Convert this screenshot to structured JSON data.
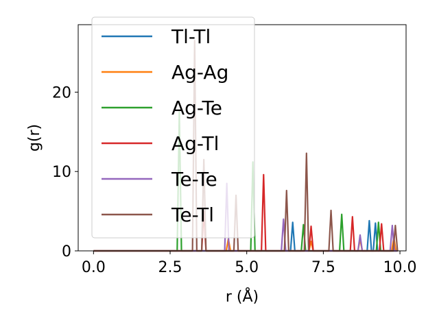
{
  "chart_data": {
    "type": "line",
    "title": "",
    "xlabel": "r (Å)",
    "ylabel": "g(r)",
    "xlim": [
      -0.5,
      10.2
    ],
    "ylim": [
      0,
      28.5
    ],
    "xticks": [
      0.0,
      2.5,
      5.0,
      7.5,
      10.0
    ],
    "xtick_labels": [
      "0.0",
      "2.5",
      "5.0",
      "7.5",
      "10.0"
    ],
    "yticks": [
      0,
      10,
      20
    ],
    "ytick_labels": [
      "0",
      "10",
      "20"
    ],
    "grid": false,
    "legend_position": "upper-left",
    "peak_half_width": 0.07,
    "series": [
      {
        "name": "Tl-Tl",
        "color": "#1f77b4",
        "peaks": [
          [
            6.5,
            3.6
          ],
          [
            9.0,
            3.8
          ],
          [
            9.2,
            3.5
          ]
        ]
      },
      {
        "name": "Ag-Ag",
        "color": "#ff7f0e",
        "peaks": [
          [
            4.4,
            1.5
          ],
          [
            7.1,
            1.2
          ],
          [
            8.7,
            1.5
          ],
          [
            9.8,
            1.7
          ]
        ]
      },
      {
        "name": "Ag-Te",
        "color": "#2ca02c",
        "peaks": [
          [
            2.8,
            17.5
          ],
          [
            5.2,
            11.2
          ],
          [
            6.85,
            3.3
          ],
          [
            8.1,
            4.6
          ],
          [
            9.3,
            3.6
          ]
        ]
      },
      {
        "name": "Ag-Tl",
        "color": "#d62728",
        "peaks": [
          [
            3.6,
            5.0
          ],
          [
            5.55,
            9.6
          ],
          [
            7.1,
            3.1
          ],
          [
            8.45,
            4.3
          ],
          [
            9.4,
            3.4
          ]
        ]
      },
      {
        "name": "Te-Te",
        "color": "#9467bd",
        "peaks": [
          [
            4.35,
            8.5
          ],
          [
            6.2,
            4.0
          ],
          [
            8.7,
            2.0
          ],
          [
            9.75,
            3.2
          ]
        ]
      },
      {
        "name": "Te-Tl",
        "color": "#8c564b",
        "peaks": [
          [
            3.3,
            26.5
          ],
          [
            3.6,
            11.5
          ],
          [
            4.65,
            7.0
          ],
          [
            6.3,
            7.6
          ],
          [
            6.95,
            12.3
          ],
          [
            7.75,
            5.1
          ],
          [
            9.85,
            3.2
          ]
        ]
      }
    ]
  }
}
